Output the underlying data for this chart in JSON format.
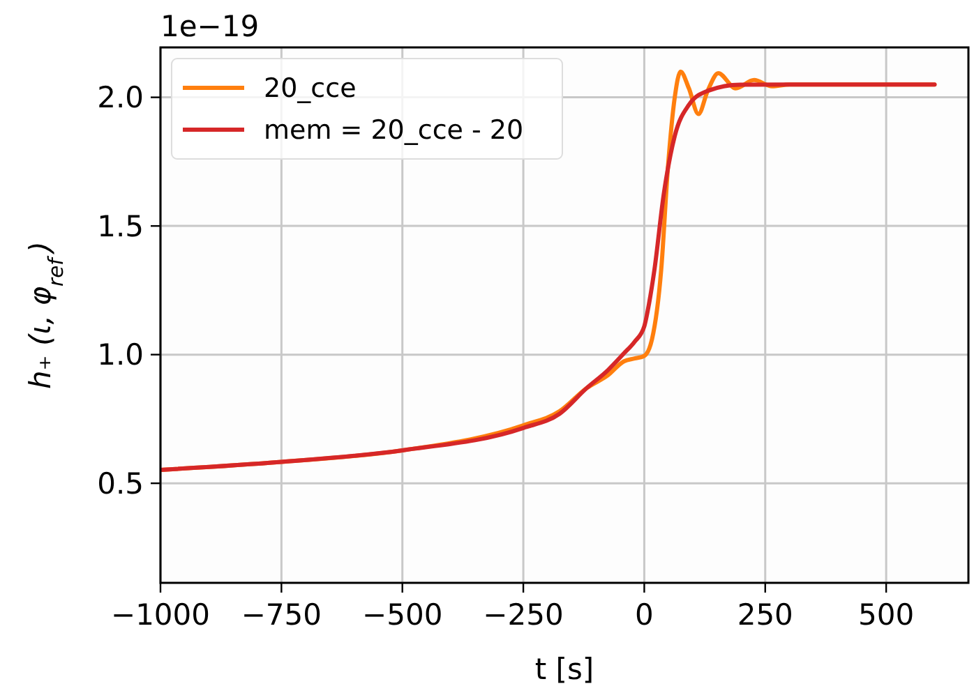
{
  "chart_data": {
    "type": "line",
    "xlabel": "t [s]",
    "ylabel": "h₊ (ι, φ$_{ref}$)",
    "annotations": [
      "1e−19"
    ],
    "xlim": [
      -1000,
      670
    ],
    "ylim": [
      0.113,
      2.194
    ],
    "xticks": [
      -1000,
      -750,
      -500,
      -250,
      0,
      250,
      500
    ],
    "yticks": [
      0.5,
      {
        "value": 1,
        "label": "1.0"
      },
      1.5,
      {
        "value": 2,
        "label": "2.0"
      }
    ],
    "grid": true,
    "legend": "top left",
    "line_style": "solid",
    "marker": "none",
    "series": [
      {
        "name": "20_cce",
        "color": "#ff7f0e",
        "x": [
          -1000,
          -750,
          -500,
          -250,
          -175,
          -119,
          -75,
          -42,
          -20,
          0,
          16,
          35,
          49,
          63,
          75,
          92,
          112,
          131,
          153,
          189,
          227,
          264,
          300,
          600
        ],
        "values": [
          0.552,
          0.583,
          0.628,
          0.725,
          0.78,
          0.87,
          0.92,
          0.974,
          0.985,
          0.995,
          1.06,
          1.33,
          1.73,
          2.0,
          2.1,
          2.036,
          1.935,
          2.025,
          2.094,
          2.035,
          2.067,
          2.043,
          2.05,
          2.05
        ]
      },
      {
        "name": "mem = 20_cce - 20",
        "color": "#d62728",
        "x": [
          -1000,
          -750,
          -500,
          -250,
          -175,
          -119,
          -75,
          -42,
          -20,
          0,
          10,
          21,
          40,
          63,
          92,
          131,
          198,
          300,
          600
        ],
        "values": [
          0.552,
          0.583,
          0.628,
          0.715,
          0.77,
          0.87,
          0.94,
          1.005,
          1.05,
          1.11,
          1.2,
          1.33,
          1.62,
          1.85,
          1.97,
          2.025,
          2.049,
          2.05,
          2.05
        ]
      }
    ]
  }
}
